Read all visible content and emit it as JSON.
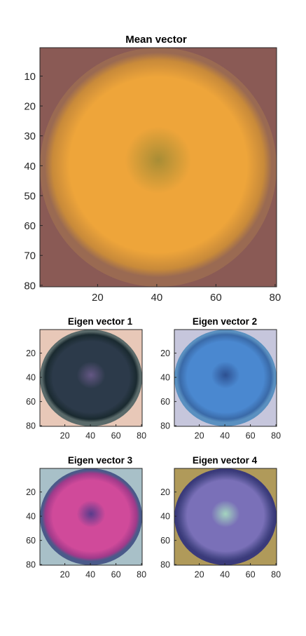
{
  "chart_data": [
    {
      "type": "heatmap",
      "title": "Mean vector",
      "x_ticks": [
        20,
        40,
        60,
        80
      ],
      "y_ticks": [
        10,
        20,
        30,
        40,
        50,
        60,
        70,
        80
      ],
      "xlim": [
        0.5,
        80.5
      ],
      "ylim": [
        0.5,
        80.5
      ],
      "y_reversed": true,
      "image": {
        "bg": "#8a5a55",
        "ring": "#9a6a52",
        "main": "#eea53a",
        "rim": "#c88a3a",
        "center": "#a08a35"
      }
    },
    {
      "type": "heatmap",
      "title": "Eigen vector 1",
      "x_ticks": [
        20,
        40,
        60,
        80
      ],
      "y_ticks": [
        20,
        40,
        60,
        80
      ],
      "xlim": [
        0.5,
        80.5
      ],
      "ylim": [
        0.5,
        80.5
      ],
      "y_reversed": true,
      "image": {
        "bg": "#e8c8b8",
        "ring": "#5a6a6a",
        "main": "#2c3a4a",
        "rim": "#1a2a30",
        "center": "#6a5a8a"
      }
    },
    {
      "type": "heatmap",
      "title": "Eigen vector 2",
      "x_ticks": [
        20,
        40,
        60,
        80
      ],
      "y_ticks": [
        20,
        40,
        60,
        80
      ],
      "xlim": [
        0.5,
        80.5
      ],
      "ylim": [
        0.5,
        80.5
      ],
      "y_reversed": true,
      "image": {
        "bg": "#c6c6dc",
        "ring": "#5a90c0",
        "main": "#4a88d0",
        "rim": "#3a6aa8",
        "center": "#2a4a8a"
      }
    },
    {
      "type": "heatmap",
      "title": "Eigen vector 3",
      "x_ticks": [
        20,
        40,
        60,
        80
      ],
      "y_ticks": [
        20,
        40,
        60,
        80
      ],
      "xlim": [
        0.5,
        80.5
      ],
      "ylim": [
        0.5,
        80.5
      ],
      "y_reversed": true,
      "image": {
        "bg": "#a8c0c8",
        "ring": "#4a5a8a",
        "main": "#d04a9a",
        "rim": "#a03a8a",
        "center": "#4a3a8a"
      }
    },
    {
      "type": "heatmap",
      "title": "Eigen vector 4",
      "x_ticks": [
        20,
        40,
        60,
        80
      ],
      "y_ticks": [
        20,
        40,
        60,
        80
      ],
      "xlim": [
        0.5,
        80.5
      ],
      "ylim": [
        0.5,
        80.5
      ],
      "y_reversed": true,
      "image": {
        "bg": "#b09a5a",
        "ring": "#3a3a7a",
        "main": "#7a70b8",
        "rim": "#4a4a8a",
        "center": "#a8e0c0"
      }
    }
  ]
}
